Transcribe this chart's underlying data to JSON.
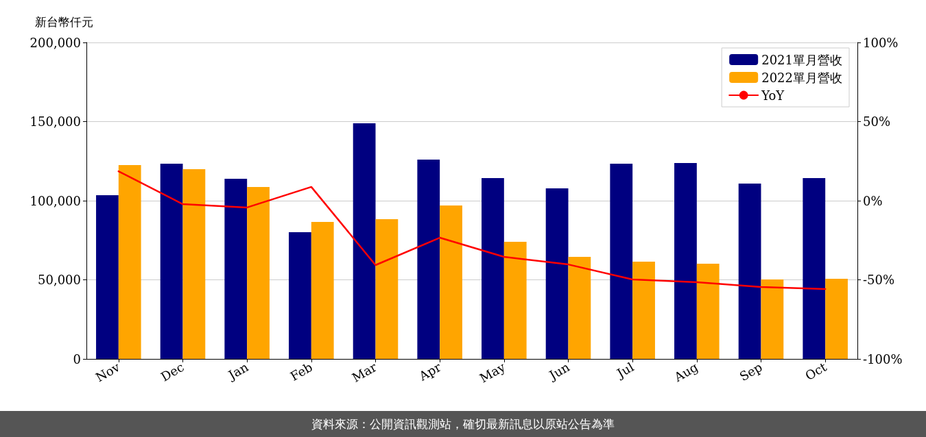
{
  "chart_data": {
    "type": "bar",
    "ylabel": "新台幣仟元",
    "categories": [
      "Nov",
      "Dec",
      "Jan",
      "Feb",
      "Mar",
      "Apr",
      "May",
      "Jun",
      "Jul",
      "Aug",
      "Sep",
      "Oct"
    ],
    "series": [
      {
        "name": "2021單月營收",
        "color": "#000080",
        "values": [
          103500,
          123400,
          113900,
          80100,
          148900,
          126000,
          114300,
          107800,
          123400,
          123800,
          110800,
          114300
        ]
      },
      {
        "name": "2022單月營收",
        "color": "#ffa500",
        "values": [
          122500,
          119900,
          108700,
          86600,
          88300,
          97000,
          74000,
          64500,
          61500,
          60200,
          50200,
          50600
        ]
      },
      {
        "name": "YoY",
        "type": "line",
        "axis": "y2",
        "color": "#ff0000",
        "values": [
          18.6,
          -2.2,
          -4.3,
          8.7,
          -40.7,
          -23.4,
          -35.5,
          -40.3,
          -49.8,
          -51.5,
          -54.5,
          -55.8
        ]
      }
    ],
    "ylim": [
      0,
      200000
    ],
    "yticks": [
      {
        "value": 0,
        "label": "0"
      },
      {
        "value": 50000,
        "label": "50,000"
      },
      {
        "value": 100000,
        "label": "100,000"
      },
      {
        "value": 150000,
        "label": "150,000"
      },
      {
        "value": 200000,
        "label": "200,000"
      }
    ],
    "y2lim": [
      -100,
      100
    ],
    "y2ticks": [
      {
        "value": -100,
        "label": "-100%"
      },
      {
        "value": -50,
        "label": "-50%"
      },
      {
        "value": 0,
        "label": "0%"
      },
      {
        "value": 50,
        "label": "50%"
      },
      {
        "value": 100,
        "label": "100%"
      }
    ],
    "grid": "y",
    "legend": "top right",
    "marker": "none",
    "line_style": "solid",
    "annotations": [
      "資料來源：公開資訊觀測站，確切最新訊息以原站公告為準"
    ]
  }
}
